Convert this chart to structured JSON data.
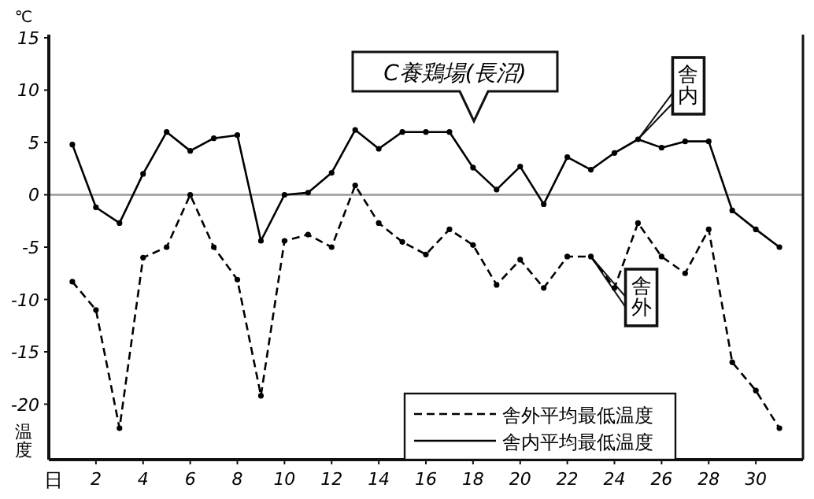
{
  "chart_data": {
    "type": "line",
    "title": "C養鶏場(長沼)",
    "xlabel": "日",
    "ylabel": "温度",
    "annotations": [
      "℃",
      {
        "text": "舎内",
        "x": 25,
        "y": 5.3
      },
      {
        "text": "舎外",
        "x": 23,
        "y": -5.9
      }
    ],
    "x": [
      1,
      2,
      3,
      4,
      5,
      6,
      7,
      8,
      9,
      10,
      11,
      12,
      13,
      14,
      15,
      16,
      17,
      18,
      19,
      20,
      21,
      22,
      23,
      24,
      25,
      26,
      27,
      28,
      29,
      30,
      31
    ],
    "series": [
      {
        "name": "舎外平均最低温度",
        "color": "#000000",
        "line_style": "dashed",
        "values": [
          -8.3,
          -11,
          -22.3,
          -6,
          -5,
          0,
          -5,
          -8.1,
          -19.2,
          -4.4,
          -3.8,
          -5,
          0.9,
          -2.7,
          -4.5,
          -5.7,
          -3.3,
          -4.8,
          -8.6,
          -6.2,
          -8.9,
          -5.9,
          -5.9,
          -8.9,
          -2.7,
          -5.9,
          -7.5,
          -3.3,
          -16,
          -18.7,
          -22.3
        ]
      },
      {
        "name": "舎内平均最低温度",
        "color": "#000000",
        "line_style": "solid",
        "values": [
          4.8,
          -1.2,
          -2.7,
          2,
          6,
          4.2,
          5.4,
          5.7,
          -4.4,
          0,
          0.2,
          2.1,
          6.2,
          4.4,
          6,
          6,
          6,
          2.6,
          0.5,
          2.7,
          -0.9,
          3.6,
          2.4,
          4,
          5.3,
          4.5,
          5.1,
          5.1,
          -1.5,
          -3.3,
          -5
        ]
      }
    ],
    "xlim": [
      0,
      32
    ],
    "ylim": [
      -25.3,
      15.3
    ],
    "xticks": [
      2,
      4,
      6,
      8,
      10,
      12,
      14,
      16,
      18,
      20,
      22,
      24,
      26,
      28,
      30
    ],
    "yticks": [
      15,
      10,
      5,
      0,
      -5,
      -10,
      -15,
      -20
    ],
    "ref_lines": [
      {
        "axis": "y",
        "value": 0,
        "color": "#999999"
      }
    ],
    "marker": "circle",
    "legend": "bottom right",
    "grid": false
  }
}
